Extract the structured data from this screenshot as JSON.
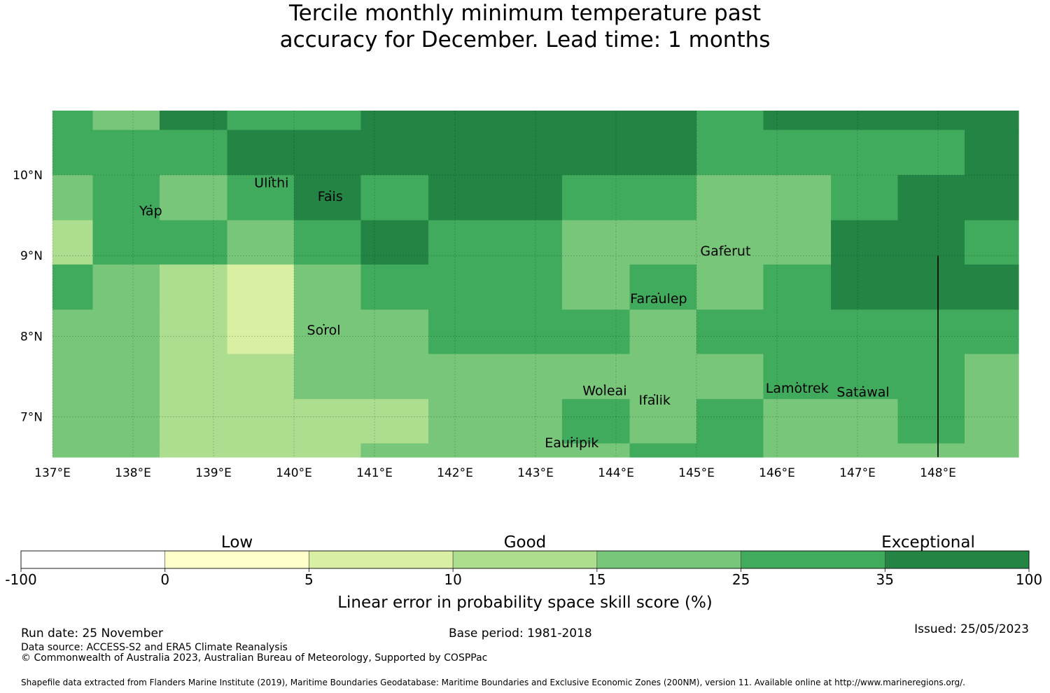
{
  "title": {
    "line1": "Tercile monthly minimum temperature past",
    "line2": "accuracy for December. Lead time: 1 months"
  },
  "map": {
    "lon_range": [
      137.0,
      149.0
    ],
    "lat_range": [
      6.5,
      10.8
    ],
    "lon_ticks": [
      {
        "value": 137,
        "label": "137°E"
      },
      {
        "value": 138,
        "label": "138°E"
      },
      {
        "value": 139,
        "label": "139°E"
      },
      {
        "value": 140,
        "label": "140°E"
      },
      {
        "value": 141,
        "label": "141°E"
      },
      {
        "value": 142,
        "label": "142°E"
      },
      {
        "value": 143,
        "label": "143°E"
      },
      {
        "value": 144,
        "label": "144°E"
      },
      {
        "value": 145,
        "label": "145°E"
      },
      {
        "value": 146,
        "label": "146°E"
      },
      {
        "value": 147,
        "label": "147°E"
      },
      {
        "value": 148,
        "label": "148°E"
      }
    ],
    "lat_ticks": [
      {
        "value": 10,
        "label": "10°N"
      },
      {
        "value": 9,
        "label": "9°N"
      },
      {
        "value": 8,
        "label": "8°N"
      },
      {
        "value": 7,
        "label": "7°N"
      }
    ],
    "grid_col_edges": [
      137.0,
      137.5,
      138.33,
      139.17,
      140.0,
      140.83,
      141.67,
      142.5,
      143.33,
      144.17,
      145.0,
      145.83,
      146.67,
      147.5,
      148.33,
      149.0
    ],
    "grid_row_edges": [
      10.8,
      10.56,
      10.0,
      9.44,
      8.89,
      8.33,
      7.78,
      7.22,
      6.67,
      6.5
    ],
    "grid_classes": [
      [
        5,
        4,
        6,
        5,
        5,
        6,
        6,
        6,
        6,
        6,
        5,
        6,
        6,
        6,
        6
      ],
      [
        5,
        5,
        5,
        6,
        6,
        6,
        6,
        6,
        6,
        6,
        5,
        5,
        5,
        5,
        6
      ],
      [
        4,
        5,
        4,
        5,
        6,
        5,
        6,
        6,
        5,
        5,
        4,
        4,
        5,
        6,
        6
      ],
      [
        3,
        5,
        5,
        4,
        5,
        6,
        5,
        5,
        4,
        4,
        4,
        4,
        6,
        6,
        5
      ],
      [
        5,
        4,
        3,
        2,
        4,
        5,
        5,
        5,
        4,
        5,
        4,
        5,
        6,
        6,
        6
      ],
      [
        4,
        4,
        3,
        2,
        4,
        4,
        5,
        5,
        5,
        4,
        5,
        5,
        5,
        5,
        5
      ],
      [
        4,
        4,
        3,
        3,
        4,
        4,
        4,
        4,
        4,
        4,
        4,
        5,
        5,
        5,
        4
      ],
      [
        4,
        4,
        3,
        3,
        3,
        3,
        4,
        4,
        5,
        4,
        5,
        4,
        4,
        5,
        4
      ],
      [
        4,
        4,
        3,
        3,
        3,
        4,
        4,
        4,
        4,
        5,
        5,
        4,
        4,
        4,
        4
      ]
    ],
    "places": [
      {
        "name": "Ulithi",
        "lon": 139.72,
        "lat": 9.85
      },
      {
        "name": "Fais",
        "lon": 140.45,
        "lat": 9.68
      },
      {
        "name": "Yap",
        "lon": 138.22,
        "lat": 9.5
      },
      {
        "name": "Gaferut",
        "lon": 145.36,
        "lat": 9.0
      },
      {
        "name": "Faraulep",
        "lon": 144.53,
        "lat": 8.41
      },
      {
        "name": "Sorol",
        "lon": 140.37,
        "lat": 8.02
      },
      {
        "name": "Woleai",
        "lon": 143.86,
        "lat": 7.27
      },
      {
        "name": "Ifalik",
        "lon": 144.48,
        "lat": 7.15
      },
      {
        "name": "Lamotrek",
        "lon": 146.25,
        "lat": 7.3
      },
      {
        "name": "Satawal",
        "lon": 147.07,
        "lat": 7.25
      },
      {
        "name": "Eauripik",
        "lon": 143.45,
        "lat": 6.62
      }
    ],
    "boundary_line": {
      "lon": 148.0,
      "lat_from": 6.5,
      "lat_to": 9.0
    }
  },
  "colorbar": {
    "categories": [
      {
        "label": "Low",
        "at_index": 1.5
      },
      {
        "label": "Good",
        "at_index": 3.5
      },
      {
        "label": "Exceptional",
        "at_index": 6.3
      }
    ],
    "bins": [
      {
        "color": "#ffffff"
      },
      {
        "color": "#ffffcc"
      },
      {
        "color": "#d9f0a3"
      },
      {
        "color": "#addd8e"
      },
      {
        "color": "#78c679"
      },
      {
        "color": "#41ab5d"
      },
      {
        "color": "#238443"
      }
    ],
    "tick_labels": [
      "-100",
      "0",
      "5",
      "10",
      "15",
      "25",
      "35",
      "100"
    ],
    "label": "Linear error in probability space skill score (%)"
  },
  "footer": {
    "run_date": "Run date: 25 November",
    "base_period": "Base period: 1981-2018",
    "issued": "Issued: 25/05/2023",
    "data_source": "Data source: ACCESS-S2 and ERA5 Climate Reanalysis",
    "copyright": "© Commonwealth of Australia 2023, Australian Bureau of Meteorology, Supported by COSPPac",
    "shapefile": "Shapefile data extracted from Flanders Marine Institute (2019), Maritime Boundaries Geodatabase: Maritime Boundaries and Exclusive Economic Zones (200NM), version 11. Available online at http://www.marineregions.org/."
  }
}
